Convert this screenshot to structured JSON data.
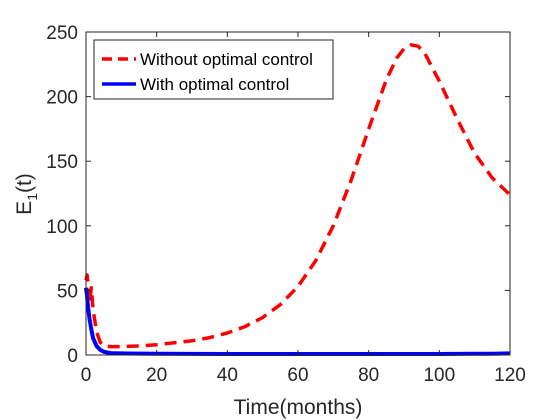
{
  "chart_data": {
    "type": "line",
    "xlabel": "Time(months)",
    "ylabel_main": "E",
    "ylabel_sub": "1",
    "ylabel_tail": "(t)",
    "xlim": [
      0,
      120
    ],
    "ylim": [
      0,
      250
    ],
    "xticks": [
      0,
      20,
      40,
      60,
      80,
      100,
      120
    ],
    "yticks": [
      0,
      50,
      100,
      150,
      200,
      250
    ],
    "grid": false,
    "legend_position": "top-left",
    "series": [
      {
        "name": "Without optimal control",
        "color": "#ff0000",
        "style": "dashed",
        "x": [
          0,
          0.3,
          0.6,
          1,
          1.5,
          2,
          3,
          4,
          5,
          7,
          10,
          15,
          20,
          25,
          30,
          35,
          40,
          45,
          50,
          55,
          60,
          65,
          70,
          75,
          80,
          85,
          88,
          90,
          92,
          94,
          96,
          100,
          105,
          110,
          115,
          120
        ],
        "y": [
          58,
          62,
          55,
          40,
          52,
          35,
          18,
          10,
          7,
          6.5,
          6.5,
          7,
          8,
          9.5,
          11,
          13.5,
          17,
          22,
          29,
          39,
          53,
          73,
          100,
          135,
          175,
          213,
          230,
          237,
          240,
          239,
          233,
          212,
          183,
          156,
          137,
          124
        ]
      },
      {
        "name": "With optimal control",
        "color": "#0000ff",
        "style": "solid",
        "x": [
          0,
          0.3,
          0.6,
          1,
          1.5,
          2,
          3,
          4,
          5,
          7,
          10,
          20,
          40,
          60,
          80,
          100,
          110,
          115,
          120
        ],
        "y": [
          52,
          45,
          37,
          28,
          20,
          13,
          7,
          4,
          2.5,
          1.5,
          1.2,
          1,
          0.8,
          0.8,
          0.8,
          0.8,
          0.9,
          1,
          1.2
        ]
      }
    ]
  }
}
